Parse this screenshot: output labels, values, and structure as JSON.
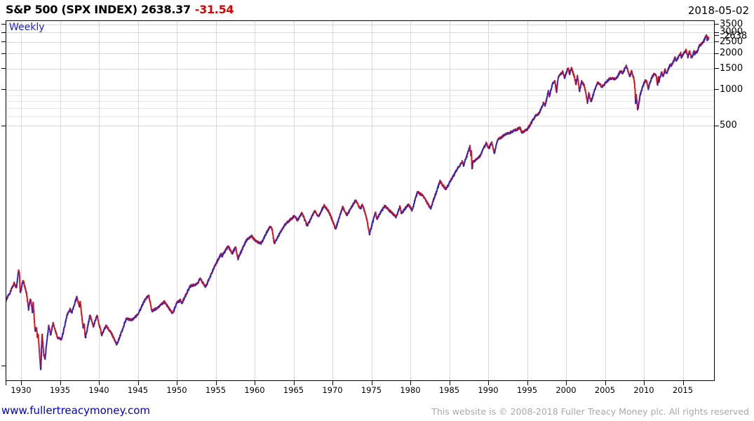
{
  "header": {
    "title_text": "S&P 500 (SPX INDEX)",
    "price": "2638.37",
    "change": "-31.54",
    "date": "2018-05-02"
  },
  "plot_label": "Weekly",
  "footer": {
    "site": "www.fullertreacymoney.com",
    "copyright": "This website is © 2008-2018 Fuller Treacy Money plc. All rights reserved"
  },
  "colors": {
    "up_candle": "#2222cc",
    "down_candle": "#dd1414",
    "change_red": "#dd0000",
    "weekly_blue": "#2222cc",
    "link_blue": "#0000cc",
    "copyright_gray": "#a9a9a9",
    "grid_major": "#d8d8d8",
    "grid_minor": "#e6e6e6",
    "axis_black": "#000000"
  },
  "chart_data": {
    "type": "candlestick",
    "frequency": "Weekly",
    "series_name": "S&P 500 (SPX INDEX)",
    "y_scale": "log",
    "latest": {
      "close": 2638.37,
      "change": -31.54,
      "as_of": "2018-05-02"
    },
    "y_axis": {
      "side": "right",
      "ticks": [
        {
          "value": 3500,
          "label": "3500"
        },
        {
          "value": 3000,
          "label": "3000"
        },
        {
          "value": 2500,
          "label": "2500"
        },
        {
          "value": 2000,
          "label": "2000"
        },
        {
          "value": 1500,
          "label": "1500"
        },
        {
          "value": 1000,
          "label": "1000"
        },
        {
          "value": 500,
          "label": "500"
        }
      ],
      "minor_grid_values": [
        900,
        800,
        700,
        600
      ],
      "current_price_label": {
        "value": 2638,
        "label": "2638"
      },
      "left_edge_minor_tick_values": [
        5
      ]
    },
    "x_axis": {
      "ticks": [
        {
          "value": 1930,
          "label": "1930"
        },
        {
          "value": 1935,
          "label": "1935"
        },
        {
          "value": 1940,
          "label": "1940"
        },
        {
          "value": 1945,
          "label": "1945"
        },
        {
          "value": 1950,
          "label": "1950"
        },
        {
          "value": 1955,
          "label": "1955"
        },
        {
          "value": 1960,
          "label": "1960"
        },
        {
          "value": 1965,
          "label": "1965"
        },
        {
          "value": 1970,
          "label": "1970"
        },
        {
          "value": 1975,
          "label": "1975"
        },
        {
          "value": 1980,
          "label": "1980"
        },
        {
          "value": 1985,
          "label": "1985"
        },
        {
          "value": 1990,
          "label": "1990"
        },
        {
          "value": 1995,
          "label": "1995"
        },
        {
          "value": 2000,
          "label": "2000"
        },
        {
          "value": 2005,
          "label": "2005"
        },
        {
          "value": 2010,
          "label": "2010"
        },
        {
          "value": 2015,
          "label": "2015"
        }
      ],
      "range": [
        1928.0,
        2019.1
      ]
    },
    "points": [
      [
        1928.05,
        17.6
      ],
      [
        1928.6,
        20.5
      ],
      [
        1929.1,
        24.5
      ],
      [
        1929.4,
        22.5
      ],
      [
        1929.68,
        31.9
      ],
      [
        1929.8,
        28.5
      ],
      [
        1929.87,
        20.4
      ],
      [
        1930.0,
        21.5
      ],
      [
        1930.25,
        25.9
      ],
      [
        1930.7,
        20.0
      ],
      [
        1930.95,
        14.8
      ],
      [
        1931.2,
        18.3
      ],
      [
        1931.45,
        13.9
      ],
      [
        1931.55,
        16.8
      ],
      [
        1931.8,
        9.7
      ],
      [
        1931.95,
        10.5
      ],
      [
        1932.1,
        8.6
      ],
      [
        1932.2,
        9.0
      ],
      [
        1932.52,
        4.5
      ],
      [
        1932.7,
        9.3
      ],
      [
        1932.9,
        6.2
      ],
      [
        1933.1,
        5.7
      ],
      [
        1933.2,
        7.0
      ],
      [
        1933.55,
        10.9
      ],
      [
        1933.8,
        9.0
      ],
      [
        1934.1,
        11.3
      ],
      [
        1934.65,
        8.6
      ],
      [
        1935.2,
        8.3
      ],
      [
        1935.9,
        13.2
      ],
      [
        1936.3,
        14.8
      ],
      [
        1936.5,
        13.8
      ],
      [
        1937.15,
        18.7
      ],
      [
        1937.5,
        15.5
      ],
      [
        1937.6,
        17.0
      ],
      [
        1937.95,
        10.3
      ],
      [
        1938.1,
        11.2
      ],
      [
        1938.25,
        8.5
      ],
      [
        1938.85,
        13.2
      ],
      [
        1939.3,
        10.6
      ],
      [
        1939.75,
        13.2
      ],
      [
        1940.35,
        9.0
      ],
      [
        1940.9,
        10.8
      ],
      [
        1941.6,
        9.3
      ],
      [
        1942.3,
        7.5
      ],
      [
        1943.5,
        12.3
      ],
      [
        1944.3,
        12.1
      ],
      [
        1945.0,
        13.5
      ],
      [
        1945.9,
        17.7
      ],
      [
        1946.4,
        19.3
      ],
      [
        1946.8,
        14.3
      ],
      [
        1947.5,
        15.2
      ],
      [
        1948.4,
        17.1
      ],
      [
        1949.45,
        13.6
      ],
      [
        1950.0,
        16.8
      ],
      [
        1950.5,
        17.7
      ],
      [
        1950.58,
        16.3
      ],
      [
        1951.7,
        23.0
      ],
      [
        1952.6,
        24.0
      ],
      [
        1953.0,
        26.7
      ],
      [
        1953.7,
        22.7
      ],
      [
        1954.8,
        33.0
      ],
      [
        1955.7,
        43.2
      ],
      [
        1955.78,
        40.8
      ],
      [
        1956.6,
        49.7
      ],
      [
        1957.1,
        43.2
      ],
      [
        1957.55,
        49.1
      ],
      [
        1957.85,
        39.0
      ],
      [
        1958.9,
        55.2
      ],
      [
        1959.6,
        60.7
      ],
      [
        1960.2,
        54.4
      ],
      [
        1960.85,
        52.3
      ],
      [
        1961.95,
        72.6
      ],
      [
        1962.25,
        69.0
      ],
      [
        1962.5,
        52.3
      ],
      [
        1963.8,
        74.0
      ],
      [
        1965.1,
        89.0
      ],
      [
        1965.5,
        81.6
      ],
      [
        1966.1,
        94.1
      ],
      [
        1966.75,
        73.2
      ],
      [
        1967.7,
        97.6
      ],
      [
        1968.2,
        87.7
      ],
      [
        1968.92,
        108.4
      ],
      [
        1969.5,
        97.0
      ],
      [
        1970.4,
        69.3
      ],
      [
        1971.3,
        104.8
      ],
      [
        1971.85,
        90.2
      ],
      [
        1972.95,
        120.2
      ],
      [
        1973.6,
        101.0
      ],
      [
        1973.8,
        111.0
      ],
      [
        1974.3,
        90.0
      ],
      [
        1974.75,
        62.3
      ],
      [
        1975.5,
        95.6
      ],
      [
        1975.7,
        84.0
      ],
      [
        1976.7,
        107.8
      ],
      [
        1977.5,
        96.0
      ],
      [
        1978.17,
        86.9
      ],
      [
        1978.65,
        107.0
      ],
      [
        1978.85,
        93.0
      ],
      [
        1979.75,
        111.3
      ],
      [
        1980.2,
        98.2
      ],
      [
        1980.9,
        140.5
      ],
      [
        1981.6,
        131.0
      ],
      [
        1982.6,
        102.4
      ],
      [
        1983.8,
        172.6
      ],
      [
        1984.55,
        147.8
      ],
      [
        1985.9,
        212.0
      ],
      [
        1986.7,
        253.0
      ],
      [
        1986.8,
        230.0
      ],
      [
        1987.65,
        336.8
      ],
      [
        1987.78,
        282.0
      ],
      [
        1987.82,
        310.0
      ],
      [
        1987.92,
        216.5
      ],
      [
        1988.05,
        250.0
      ],
      [
        1988.9,
        277.0
      ],
      [
        1989.75,
        359.8
      ],
      [
        1990.1,
        322.0
      ],
      [
        1990.45,
        368.0
      ],
      [
        1990.78,
        295.0
      ],
      [
        1991.2,
        380.0
      ],
      [
        1992.0,
        418.0
      ],
      [
        1993.1,
        449.0
      ],
      [
        1994.1,
        482.0
      ],
      [
        1994.3,
        439.0
      ],
      [
        1995.0,
        465.0
      ],
      [
        1996.1,
        611.0
      ],
      [
        1996.55,
        635.0
      ],
      [
        1997.15,
        790.0
      ],
      [
        1997.3,
        737.0
      ],
      [
        1997.75,
        983.0
      ],
      [
        1997.85,
        876.0
      ],
      [
        1998.2,
        1100
      ],
      [
        1998.55,
        1187
      ],
      [
        1998.77,
        957
      ],
      [
        1999.0,
        1275
      ],
      [
        1999.55,
        1418
      ],
      [
        1999.8,
        1247
      ],
      [
        2000.25,
        1527
      ],
      [
        2000.45,
        1361
      ],
      [
        2000.68,
        1520
      ],
      [
        2001.05,
        1300
      ],
      [
        2001.27,
        1103
      ],
      [
        2001.45,
        1312
      ],
      [
        2001.72,
        966
      ],
      [
        2002.0,
        1172
      ],
      [
        2002.35,
        1076
      ],
      [
        2002.75,
        777
      ],
      [
        2002.92,
        936
      ],
      [
        2003.2,
        800
      ],
      [
        2004.0,
        1150
      ],
      [
        2004.65,
        1063
      ],
      [
        2005.6,
        1245
      ],
      [
        2006.4,
        1223
      ],
      [
        2007.05,
        1450
      ],
      [
        2007.2,
        1374
      ],
      [
        2007.75,
        1565
      ],
      [
        2008.2,
        1273
      ],
      [
        2008.4,
        1426
      ],
      [
        2008.67,
        1255
      ],
      [
        2008.8,
        1106
      ],
      [
        2008.88,
        940
      ],
      [
        2008.92,
        752
      ],
      [
        2009.0,
        931
      ],
      [
        2009.2,
        677
      ],
      [
        2009.55,
        930
      ],
      [
        2010.05,
        1150
      ],
      [
        2010.3,
        1217
      ],
      [
        2010.55,
        1023
      ],
      [
        2011.0,
        1257
      ],
      [
        2011.35,
        1364
      ],
      [
        2011.58,
        1292
      ],
      [
        2011.75,
        1099
      ],
      [
        2011.85,
        1285
      ],
      [
        2011.92,
        1158
      ],
      [
        2012.25,
        1419
      ],
      [
        2012.45,
        1278
      ],
      [
        2012.7,
        1466
      ],
      [
        2012.88,
        1353
      ],
      [
        2013.4,
        1633
      ],
      [
        2013.5,
        1573
      ],
      [
        2014.0,
        1848
      ],
      [
        2014.12,
        1741
      ],
      [
        2014.72,
        2011
      ],
      [
        2014.8,
        1862
      ],
      [
        2015.4,
        2131
      ],
      [
        2015.65,
        1867
      ],
      [
        2015.85,
        2099
      ],
      [
        2016.12,
        1829
      ],
      [
        2016.45,
        2111
      ],
      [
        2016.5,
        2001
      ],
      [
        2016.85,
        2085
      ],
      [
        2017.1,
        2316
      ],
      [
        2017.6,
        2480
      ],
      [
        2018.05,
        2873
      ],
      [
        2018.13,
        2581
      ],
      [
        2018.2,
        2786
      ],
      [
        2018.23,
        2588
      ],
      [
        2018.28,
        2700
      ],
      [
        2018.33,
        2638.37
      ]
    ]
  }
}
